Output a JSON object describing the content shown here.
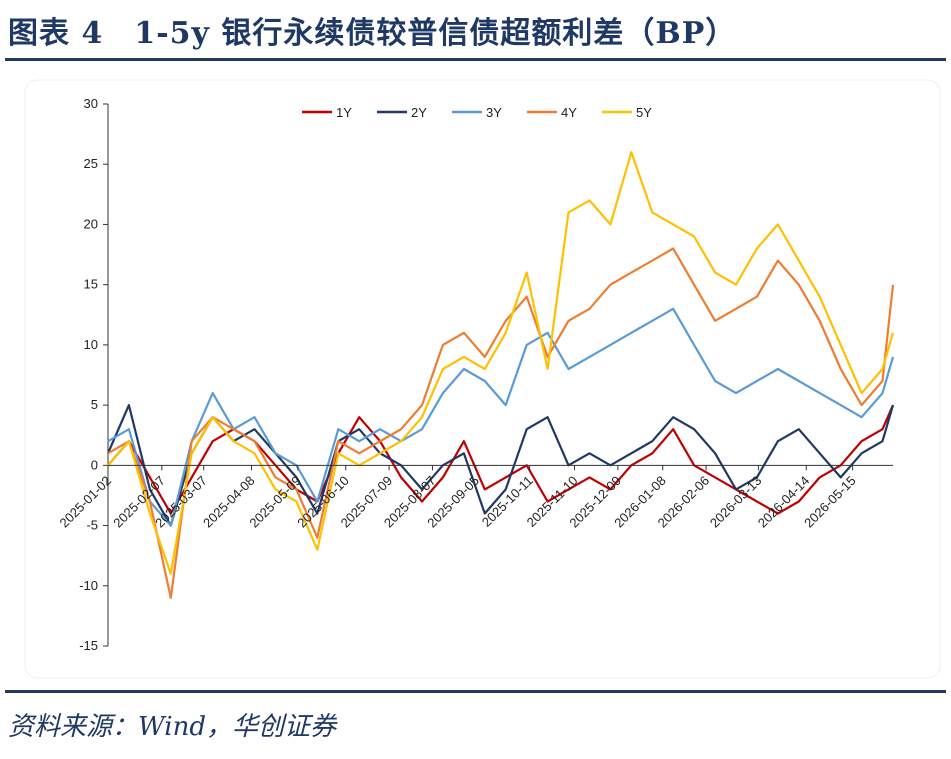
{
  "header": {
    "title": "图表 4　1-5y 银行永续债较普信债超额利差（BP）"
  },
  "footer": {
    "source": "资料来源：Wind，华创证券"
  },
  "chart_data": {
    "type": "line",
    "title": "图表 4　1-5y 银行永续债较普信债超额利差（BP）",
    "xlabel": "",
    "ylabel": "",
    "ylim": [
      -15,
      30
    ],
    "yticks": [
      -15,
      -10,
      -5,
      0,
      5,
      10,
      15,
      20,
      25,
      30
    ],
    "x_ticks": [
      "2025-01-02",
      "2025-02-07",
      "2025-03-07",
      "2025-04-08",
      "2025-05-09",
      "2025-06-10",
      "2025-07-09",
      "2025-08-07",
      "2025-09-05",
      "2025-10-11",
      "2025-11-10",
      "2025-12-09",
      "2026-01-08",
      "2026-02-06",
      "2026-03-13",
      "2026-04-14",
      "2026-05-15"
    ],
    "legend_position": "top-center",
    "grid": false,
    "x": [
      "2025-01-02",
      "2025-01-16",
      "2025-01-30",
      "2025-02-13",
      "2025-02-27",
      "2025-03-13",
      "2025-03-27",
      "2025-04-10",
      "2025-04-24",
      "2025-05-08",
      "2025-05-22",
      "2025-06-05",
      "2025-06-19",
      "2025-07-03",
      "2025-07-17",
      "2025-07-31",
      "2025-08-14",
      "2025-08-28",
      "2025-09-11",
      "2025-09-25",
      "2025-10-09",
      "2025-10-23",
      "2025-11-06",
      "2025-11-20",
      "2025-12-04",
      "2025-12-18",
      "2026-01-01",
      "2026-01-15",
      "2026-01-29",
      "2026-02-12",
      "2026-02-26",
      "2026-03-12",
      "2026-03-26",
      "2026-04-09",
      "2026-04-23",
      "2026-05-07",
      "2026-05-21",
      "2026-06-04",
      "2026-06-11"
    ],
    "series": [
      {
        "name": "1Y",
        "color": "#c00000",
        "values": [
          0,
          2,
          -1,
          -4,
          -1,
          2,
          3,
          2,
          0,
          -2,
          -3,
          1,
          4,
          2,
          -1,
          -3,
          -1,
          2,
          -2,
          -1,
          0,
          -3,
          -2,
          -1,
          -2,
          0,
          1,
          3,
          0,
          -1,
          -2,
          -3,
          -4,
          -3,
          -1,
          0,
          2,
          3,
          5
        ]
      },
      {
        "name": "2Y",
        "color": "#1f3864",
        "values": [
          1,
          5,
          -2,
          -5,
          1,
          4,
          2,
          3,
          1,
          -1,
          -4,
          2,
          3,
          1,
          0,
          -2,
          0,
          1,
          -4,
          -2,
          3,
          4,
          0,
          1,
          0,
          1,
          2,
          4,
          3,
          1,
          -2,
          -1,
          2,
          3,
          1,
          -1,
          1,
          2,
          5
        ]
      },
      {
        "name": "3Y",
        "color": "#5b9bd5",
        "values": [
          2,
          3,
          -3,
          -5,
          2,
          6,
          3,
          4,
          1,
          0,
          -3,
          3,
          2,
          3,
          2,
          3,
          6,
          8,
          7,
          5,
          10,
          11,
          8,
          9,
          10,
          11,
          12,
          13,
          10,
          7,
          6,
          7,
          8,
          7,
          6,
          5,
          4,
          6,
          9
        ]
      },
      {
        "name": "4Y",
        "color": "#ed7d31",
        "values": [
          1,
          2,
          -3,
          -11,
          2,
          4,
          3,
          2,
          -1,
          -2,
          -6,
          2,
          1,
          2,
          3,
          5,
          10,
          11,
          9,
          12,
          14,
          9,
          12,
          13,
          15,
          16,
          17,
          18,
          15,
          12,
          13,
          14,
          17,
          15,
          12,
          8,
          5,
          7,
          15
        ]
      },
      {
        "name": "5Y",
        "color": "#ffc000",
        "values": [
          0,
          2,
          -4,
          -9,
          1,
          4,
          2,
          1,
          -2,
          -3,
          -7,
          1,
          0,
          1,
          2,
          4,
          8,
          9,
          8,
          11,
          16,
          8,
          21,
          22,
          20,
          26,
          21,
          20,
          19,
          16,
          15,
          18,
          20,
          17,
          14,
          10,
          6,
          8,
          11
        ]
      }
    ]
  }
}
